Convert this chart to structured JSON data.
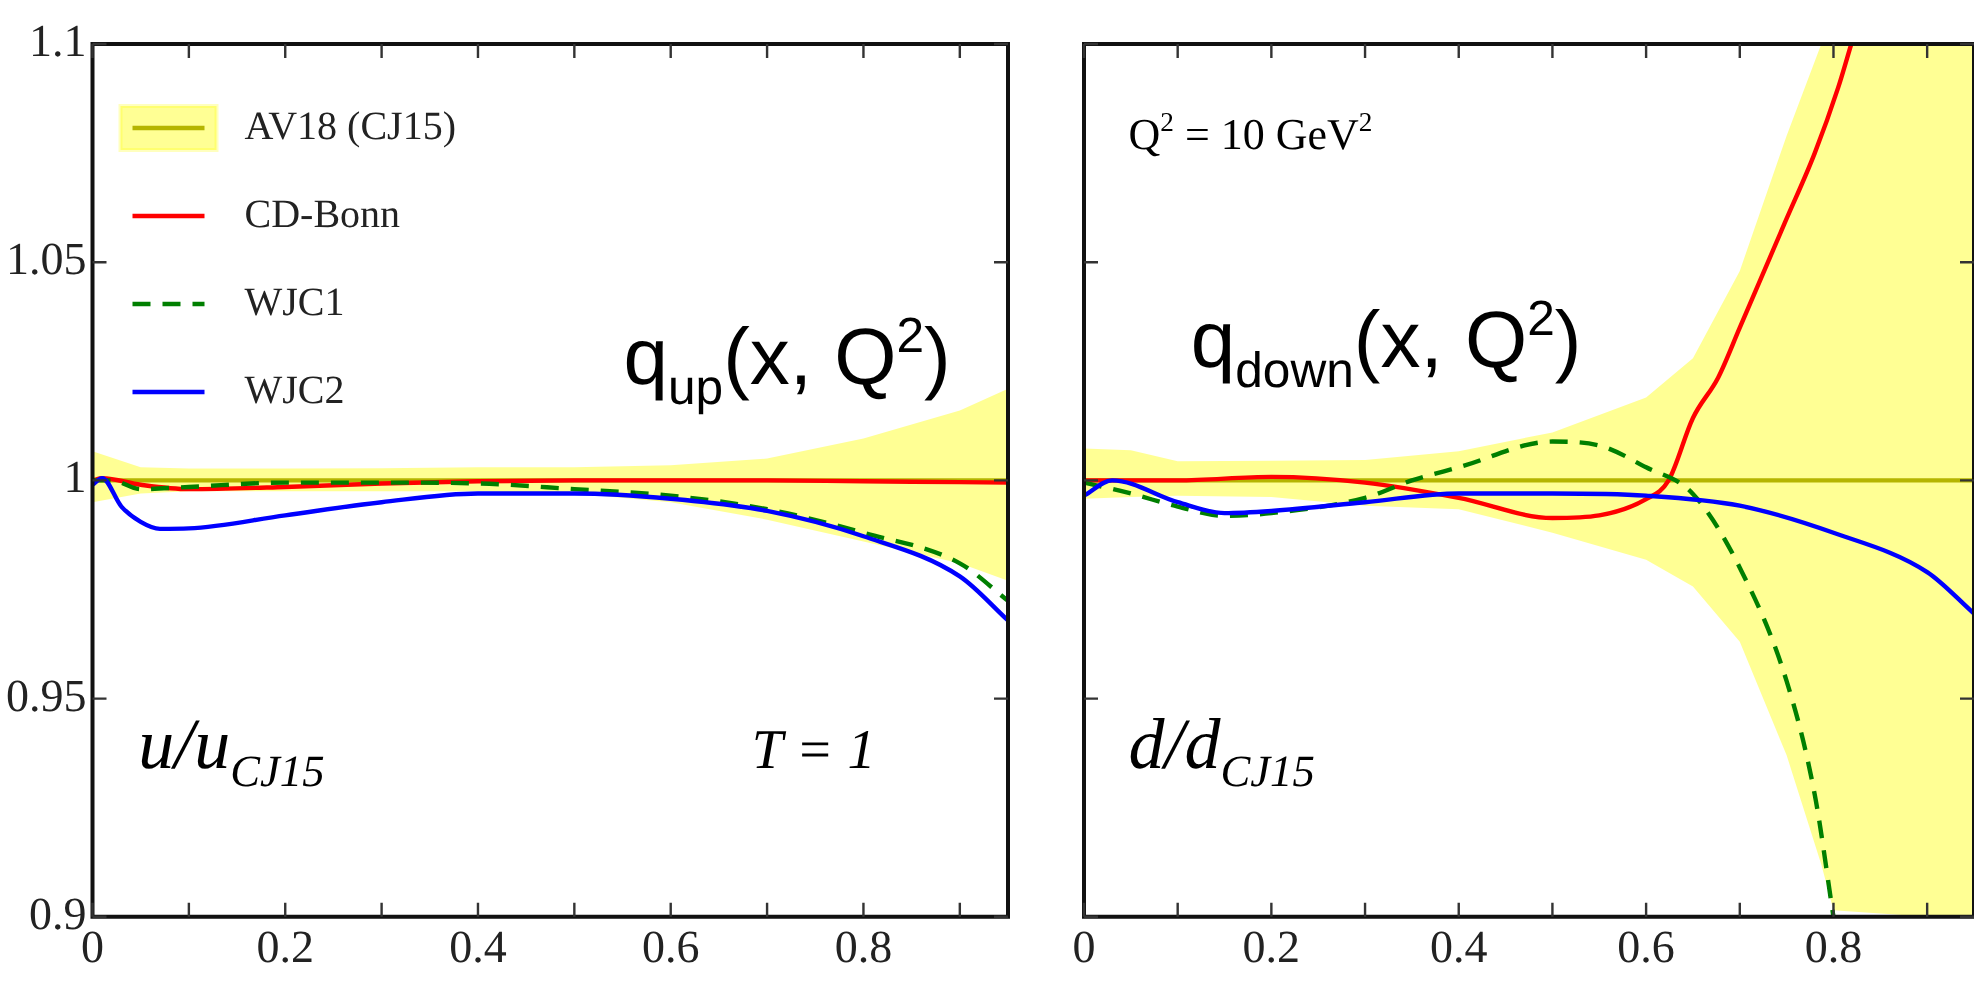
{
  "chart_data": [
    {
      "type": "line",
      "xlim": [
        0,
        0.95
      ],
      "ylim": [
        0.9,
        1.1
      ],
      "xticks": [
        0,
        {
          "value": 0.1,
          "label": null
        },
        0.2,
        {
          "value": 0.3,
          "label": null
        },
        0.4,
        {
          "value": 0.5,
          "label": null
        },
        0.6,
        {
          "value": 0.7,
          "label": null
        },
        0.8,
        {
          "value": 0.9,
          "label": null
        }
      ],
      "yticks": [
        0.9,
        0.95,
        1,
        1.05,
        1.1
      ],
      "legend": "top left",
      "annotations": [
        "q$_{up}$(x, Q$^{2}$)",
        "u/u$_{CJ15}$",
        "T = 1"
      ],
      "series": [
        {
          "name": "AV18 (CJ15)",
          "color": "#b5b500",
          "x": [
            0,
            0.05,
            0.1,
            0.2,
            0.3,
            0.4,
            0.5,
            0.6,
            0.7,
            0.8,
            0.9,
            0.95
          ],
          "values": [
            1,
            1,
            1,
            1,
            1,
            1,
            1,
            1,
            1,
            1,
            1,
            1
          ],
          "upper": [
            1.0067,
            1.003,
            1.0027,
            1.0027,
            1.0028,
            1.003,
            1.003,
            1.0035,
            1.005,
            1.0096,
            1.016,
            1.021
          ],
          "lower": [
            0.995,
            0.997,
            0.9975,
            0.9975,
            0.9975,
            0.9975,
            0.997,
            0.995,
            0.991,
            0.986,
            0.981,
            0.977
          ]
        },
        {
          "name": "CD-Bonn",
          "color": "#ff0000",
          "x": [
            0,
            0.01,
            0.05,
            0.1,
            0.2,
            0.3,
            0.4,
            0.5,
            0.6,
            0.7,
            0.8,
            0.9,
            0.95
          ],
          "values": [
            1.0,
            1.0005,
            0.999,
            0.998,
            0.9985,
            0.9993,
            0.9998,
            1.0,
            1.0,
            1.0,
            0.9998,
            0.9996,
            0.9995
          ]
        },
        {
          "name": "WJC1",
          "color": "#007f00",
          "line_style": "dashed",
          "x": [
            0,
            0.02,
            0.05,
            0.1,
            0.2,
            0.3,
            0.4,
            0.5,
            0.6,
            0.7,
            0.8,
            0.9,
            0.95
          ],
          "values": [
            1.0,
            1.0,
            0.998,
            0.9985,
            0.9995,
            0.9995,
            0.9993,
            0.998,
            0.9965,
            0.9934,
            0.988,
            0.981,
            0.9724
          ]
        },
        {
          "name": "WJC2",
          "color": "#0000ff",
          "x": [
            0,
            0.01,
            0.03,
            0.05,
            0.07,
            0.1,
            0.2,
            0.3,
            0.4,
            0.5,
            0.6,
            0.7,
            0.8,
            0.9,
            0.95
          ],
          "values": [
            0.999,
            1.0005,
            0.994,
            0.9905,
            0.9889,
            0.989,
            0.992,
            0.995,
            0.997,
            0.997,
            0.9958,
            0.993,
            0.9872,
            0.978,
            0.9679
          ]
        }
      ]
    },
    {
      "type": "line",
      "xlim": [
        0,
        0.95
      ],
      "ylim": [
        0.9,
        1.1
      ],
      "tick_labels": "x",
      "xticks": [
        0,
        {
          "value": 0.1,
          "label": null
        },
        0.2,
        {
          "value": 0.3,
          "label": null
        },
        0.4,
        {
          "value": 0.5,
          "label": null
        },
        0.6,
        {
          "value": 0.7,
          "label": null
        },
        0.8,
        {
          "value": 0.9,
          "label": null
        }
      ],
      "yticks": [
        0.9,
        0.95,
        1,
        1.05,
        1.1
      ],
      "annotations": [
        "Q$^{2}$ = 10 GeV$^{2}$",
        "q$_{down}$(x, Q$^{2}$)",
        "d/d$_{CJ15}$"
      ],
      "series": [
        {
          "color": "#b5b500",
          "x": [
            0,
            0.05,
            0.1,
            0.2,
            0.3,
            0.4,
            0.5,
            0.6,
            0.65,
            0.7,
            0.75,
            0.787,
            0.8,
            0.9,
            0.95
          ],
          "values": [
            1,
            1,
            1,
            1,
            1,
            1,
            1,
            1,
            1,
            1,
            1,
            1,
            1,
            1,
            1
          ],
          "upper": [
            1.0073,
            1.0069,
            1.0044,
            1.0045,
            1.0047,
            1.0067,
            1.011,
            1.019,
            1.028,
            1.048,
            1.079,
            1.1,
            1.1,
            1.1,
            1.1
          ],
          "lower": [
            0.9958,
            0.9962,
            0.9965,
            0.9962,
            0.9942,
            0.9934,
            0.988,
            0.9818,
            0.9757,
            0.963,
            0.937,
            0.912,
            0.9015,
            0.9,
            0.9
          ]
        },
        {
          "color": "#ff0000",
          "x": [
            0,
            0.1,
            0.2,
            0.3,
            0.4,
            0.5,
            0.55,
            0.6,
            0.624,
            0.65,
            0.677,
            0.7,
            0.748,
            0.78,
            0.805,
            0.819
          ],
          "values": [
            1.0,
            1.0,
            1.0008,
            0.9995,
            0.996,
            0.9914,
            0.992,
            0.9957,
            1.0,
            1.0143,
            1.0236,
            1.035,
            1.059,
            1.075,
            1.09,
            1.1
          ]
        },
        {
          "color": "#007f00",
          "line_style": "dashed",
          "x": [
            0,
            0.05,
            0.1,
            0.15,
            0.2,
            0.3,
            0.35,
            0.4,
            0.5,
            0.55,
            0.6,
            0.65,
            0.7,
            0.75,
            0.78,
            0.8
          ],
          "values": [
            0.9995,
            0.997,
            0.994,
            0.9919,
            0.9925,
            0.996,
            1.0,
            1.003,
            1.0089,
            1.008,
            1.003,
            0.9969,
            0.98,
            0.954,
            0.928,
            0.9
          ]
        },
        {
          "color": "#0000ff",
          "x": [
            0,
            0.03,
            0.1,
            0.15,
            0.2,
            0.3,
            0.4,
            0.5,
            0.6,
            0.7,
            0.8,
            0.9,
            0.95
          ],
          "values": [
            0.9965,
            1.0,
            0.995,
            0.9925,
            0.993,
            0.995,
            0.997,
            0.997,
            0.9965,
            0.9942,
            0.988,
            0.979,
            0.9695
          ]
        }
      ]
    }
  ]
}
